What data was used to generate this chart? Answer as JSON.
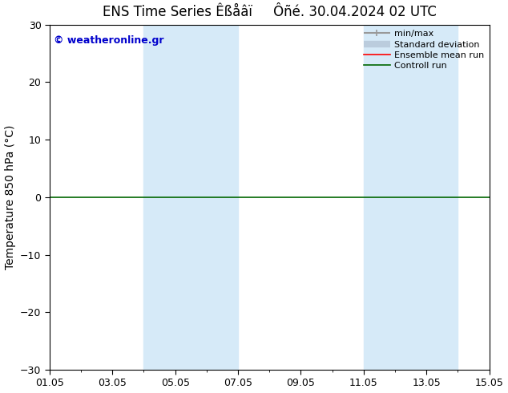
{
  "title": "ENS Time Series Êßåâï     Ôñé. 30.04.2024 02 UTC",
  "ylabel": "Temperature 850 hPa (°C)",
  "ylim": [
    -30,
    30
  ],
  "yticks": [
    -30,
    -20,
    -10,
    0,
    10,
    20,
    30
  ],
  "xtick_labels": [
    "01.05",
    "03.05",
    "05.05",
    "07.05",
    "09.05",
    "11.05",
    "13.05",
    "15.05"
  ],
  "xtick_positions": [
    0,
    2,
    4,
    6,
    8,
    10,
    12,
    14
  ],
  "weekend_bands": [
    {
      "start": 3,
      "end": 6
    },
    {
      "start": 10,
      "end": 13
    }
  ],
  "weekend_color": "#d6eaf8",
  "zero_line_color": "#006600",
  "legend_items": [
    {
      "label": "min/max",
      "color": "#999999",
      "lw": 1.5
    },
    {
      "label": "Standard deviation",
      "color": "#bbccdd",
      "lw": 6
    },
    {
      "label": "Ensemble mean run",
      "color": "#ff0000",
      "lw": 1.2
    },
    {
      "label": "Controll run",
      "color": "#006600",
      "lw": 1.2
    }
  ],
  "watermark": "© weatheronline.gr",
  "watermark_color": "#0000cc",
  "bg_color": "#ffffff",
  "plot_bg_color": "#ffffff",
  "title_fontsize": 12,
  "axis_label_fontsize": 10,
  "tick_fontsize": 9,
  "legend_fontsize": 8
}
